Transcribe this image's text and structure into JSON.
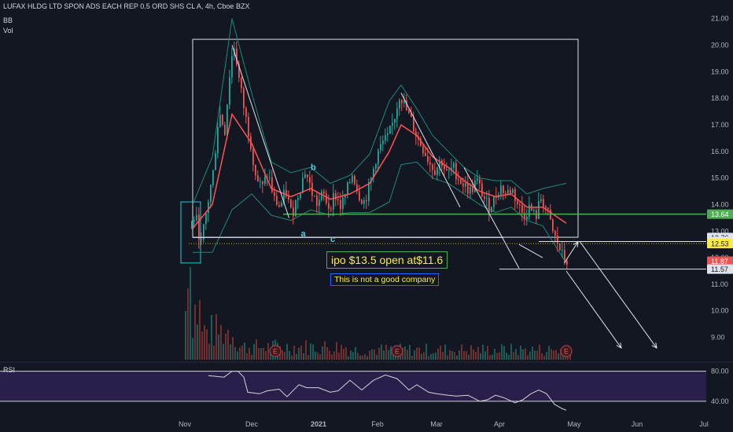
{
  "header": {
    "title": "LUFAX HLDG LTD SPON ADS EACH REP 0.5 ORD SHS CL A, 4h, Cboe BZX",
    "indicator_bb": "BB",
    "indicator_vol": "Vol",
    "rsi_label": "RSI"
  },
  "annotations": {
    "ipo_note": "ipo $13.5 open at$11.6",
    "company_note": "This  is not a good company",
    "wave_a": "a",
    "wave_b": "b",
    "wave_c": "c",
    "earnings_marker": "E"
  },
  "colors": {
    "background": "#131722",
    "up": "#26a69a",
    "down": "#ef5350",
    "bb_band": "#1d8a77",
    "bb_basis": "#ff5252",
    "support_green": "#4caf50",
    "rsi_line": "#d1d4dc",
    "rsi_band": "#2a1f4a",
    "highlight_yellow": "#ffeb3b",
    "cyan_box": "#26c6da"
  },
  "chart_data": {
    "type": "candlestick",
    "title": "LUFAX HLDG LTD SPON ADS EACH REP 0.5 ORD SHS CL A, 4h, Cboe BZX",
    "x_ticks": [
      "Nov",
      "Dec",
      "2021",
      "Feb",
      "Mar",
      "Apr",
      "May",
      "Jun",
      "Jul"
    ],
    "y_ticks": [
      9,
      10,
      11,
      12,
      13,
      14,
      15,
      16,
      17,
      18,
      19,
      20,
      21
    ],
    "y_tick_labels": [
      "9.00",
      "10.00",
      "11.00",
      "12.00",
      "13.00",
      "14.00",
      "15.00",
      "16.00",
      "17.00",
      "18.00",
      "19.00",
      "20.00",
      "21.00"
    ],
    "ylim": [
      8.1,
      21.7
    ],
    "price_path": [
      [
        0,
        13.1
      ],
      [
        1.5,
        13.6
      ],
      [
        3,
        12.5
      ],
      [
        4.5,
        13.9
      ],
      [
        6,
        15.2
      ],
      [
        7.5,
        17.5
      ],
      [
        9,
        16.8
      ],
      [
        10.5,
        19.4
      ],
      [
        11.5,
        20.0
      ],
      [
        12.5,
        18.8
      ],
      [
        14,
        17.5
      ],
      [
        15.5,
        16.4
      ],
      [
        17,
        15.0
      ],
      [
        18.5,
        14.6
      ],
      [
        20,
        15.2
      ],
      [
        21.5,
        14.2
      ],
      [
        23,
        13.9
      ],
      [
        24.5,
        14.5
      ],
      [
        26,
        13.6
      ],
      [
        28,
        14.6
      ],
      [
        29.5,
        15.3
      ],
      [
        31,
        14.5
      ],
      [
        32.5,
        14.0
      ],
      [
        34,
        14.4
      ],
      [
        35.5,
        13.9
      ],
      [
        37,
        14.4
      ],
      [
        38.5,
        13.9
      ],
      [
        40,
        14.5
      ],
      [
        41.5,
        15.2
      ],
      [
        43,
        14.4
      ],
      [
        44.5,
        14.1
      ],
      [
        46,
        14.8
      ],
      [
        47.5,
        15.8
      ],
      [
        49,
        16.3
      ],
      [
        50.5,
        16.5
      ],
      [
        52,
        17.2
      ],
      [
        53.5,
        18.2
      ],
      [
        55,
        17.6
      ],
      [
        56.5,
        17.1
      ],
      [
        58,
        16.5
      ],
      [
        59.5,
        16.1
      ],
      [
        61,
        15.6
      ],
      [
        62.5,
        15.3
      ],
      [
        64,
        15.7
      ],
      [
        65.5,
        15.1
      ],
      [
        67,
        15.4
      ],
      [
        68.5,
        15.0
      ],
      [
        70,
        14.7
      ],
      [
        71.5,
        14.5
      ],
      [
        73,
        14.9
      ],
      [
        74.5,
        14.4
      ],
      [
        76,
        13.9
      ],
      [
        77.5,
        14.2
      ],
      [
        79,
        14.7
      ],
      [
        80.5,
        14.4
      ],
      [
        82,
        14.6
      ],
      [
        83.5,
        14.0
      ],
      [
        85,
        13.6
      ],
      [
        86.5,
        13.9
      ],
      [
        88,
        13.5
      ],
      [
        89.5,
        14.3
      ],
      [
        91,
        13.7
      ],
      [
        92.5,
        12.9
      ],
      [
        94,
        12.4
      ],
      [
        95,
        12.0
      ],
      [
        96,
        11.87
      ]
    ],
    "bollinger": {
      "upper": [
        [
          1,
          14.0
        ],
        [
          6,
          15.8
        ],
        [
          11,
          21.0
        ],
        [
          16,
          18.2
        ],
        [
          21,
          15.6
        ],
        [
          26,
          15.2
        ],
        [
          31,
          15.4
        ],
        [
          36,
          14.8
        ],
        [
          41,
          15.1
        ],
        [
          46,
          15.9
        ],
        [
          51,
          17.9
        ],
        [
          54,
          18.5
        ],
        [
          58,
          17.6
        ],
        [
          62,
          16.6
        ],
        [
          66,
          16.0
        ],
        [
          70,
          15.4
        ],
        [
          74,
          15.0
        ],
        [
          78,
          14.9
        ],
        [
          82,
          14.9
        ],
        [
          86,
          14.4
        ],
        [
          90,
          14.6
        ],
        [
          96,
          14.8
        ]
      ],
      "basis": [
        [
          1,
          13.1
        ],
        [
          6,
          14.0
        ],
        [
          11,
          17.4
        ],
        [
          16,
          16.3
        ],
        [
          21,
          14.6
        ],
        [
          26,
          14.3
        ],
        [
          31,
          14.6
        ],
        [
          36,
          14.2
        ],
        [
          41,
          14.4
        ],
        [
          46,
          14.8
        ],
        [
          51,
          16.0
        ],
        [
          54,
          17.0
        ],
        [
          58,
          16.6
        ],
        [
          62,
          15.8
        ],
        [
          66,
          15.4
        ],
        [
          70,
          14.9
        ],
        [
          74,
          14.5
        ],
        [
          78,
          14.3
        ],
        [
          82,
          14.4
        ],
        [
          86,
          13.9
        ],
        [
          90,
          13.9
        ],
        [
          96,
          13.3
        ]
      ],
      "lower": [
        [
          1,
          12.2
        ],
        [
          6,
          12.2
        ],
        [
          11,
          13.8
        ],
        [
          16,
          14.4
        ],
        [
          21,
          13.6
        ],
        [
          26,
          13.4
        ],
        [
          31,
          13.8
        ],
        [
          36,
          13.6
        ],
        [
          41,
          13.7
        ],
        [
          46,
          13.7
        ],
        [
          51,
          14.1
        ],
        [
          54,
          15.5
        ],
        [
          58,
          15.6
        ],
        [
          62,
          15.0
        ],
        [
          66,
          14.8
        ],
        [
          70,
          14.4
        ],
        [
          74,
          14.0
        ],
        [
          78,
          13.7
        ],
        [
          82,
          13.9
        ],
        [
          86,
          13.4
        ],
        [
          90,
          13.2
        ],
        [
          96,
          11.8
        ]
      ]
    },
    "price_labels": [
      {
        "value": 13.64,
        "text": "13.64",
        "style": "green"
      },
      {
        "value": 12.76,
        "text": "12.76",
        "style": "white"
      },
      {
        "value": 12.61,
        "text": "12.61",
        "style": "white"
      },
      {
        "value": 12.53,
        "text": "12.53",
        "style": "yellow"
      },
      {
        "value": 11.87,
        "text": "11.87",
        "style": "red"
      },
      {
        "value": 11.57,
        "text": "11.57",
        "style": "white"
      }
    ],
    "horizontal_lines": [
      {
        "value": 13.64,
        "x0": 24,
        "x1": 153,
        "color": "green"
      },
      {
        "value": 12.76,
        "x0": 1,
        "x1": 80,
        "color": "white"
      },
      {
        "value": 12.61,
        "x0": 89,
        "x1": 153,
        "color": "white"
      },
      {
        "value": 12.53,
        "x0": 0,
        "x1": 153,
        "color": "yellow-dotted"
      },
      {
        "value": 11.57,
        "x0": 79,
        "x1": 153,
        "color": "white"
      }
    ],
    "rectangles": [
      {
        "x0": 1,
        "x1": 99,
        "y0": 12.77,
        "y1": 20.22,
        "color": "white"
      },
      {
        "x0": -2,
        "x1": 3,
        "y0": 11.8,
        "y1": 14.1,
        "color": "cyan"
      }
    ],
    "trend_lines": [
      {
        "points": [
          [
            11,
            20.0
          ],
          [
            25.5,
            13.5
          ]
        ]
      },
      {
        "points": [
          [
            54,
            18.2
          ],
          [
            69,
            13.9
          ]
        ]
      },
      {
        "points": [
          [
            70,
            15.4
          ],
          [
            84,
            11.6
          ]
        ]
      },
      {
        "points": [
          [
            84,
            12.5
          ],
          [
            90,
            12.0
          ]
        ]
      }
    ],
    "projection_arrows": [
      {
        "points": [
          [
            95.5,
            11.8
          ],
          [
            99,
            12.6
          ]
        ]
      },
      {
        "points": [
          [
            96,
            11.5
          ],
          [
            110,
            8.6
          ]
        ]
      },
      {
        "points": [
          [
            99.5,
            12.6
          ],
          [
            119,
            8.6
          ]
        ]
      }
    ],
    "earnings_x": [
      22,
      53,
      96
    ],
    "volume": {
      "pattern": "spiky, largest at Nov IPO period, tapering through Jan to May"
    },
    "rsi": {
      "lines": [
        80,
        40
      ],
      "tick_labels": [
        "80.00",
        "40.00"
      ],
      "path": [
        [
          5,
          74
        ],
        [
          9,
          72
        ],
        [
          11,
          80
        ],
        [
          12.5,
          80
        ],
        [
          14,
          72
        ],
        [
          15,
          52
        ],
        [
          18,
          50
        ],
        [
          20,
          54
        ],
        [
          23,
          56
        ],
        [
          25,
          46
        ],
        [
          28,
          62
        ],
        [
          30,
          58
        ],
        [
          33,
          58
        ],
        [
          36,
          52
        ],
        [
          38,
          54
        ],
        [
          41,
          68
        ],
        [
          44,
          55
        ],
        [
          47,
          68
        ],
        [
          50,
          75
        ],
        [
          53,
          70
        ],
        [
          56,
          55
        ],
        [
          58,
          62
        ],
        [
          61,
          52
        ],
        [
          63,
          50
        ],
        [
          66,
          48
        ],
        [
          68,
          47
        ],
        [
          71,
          48
        ],
        [
          74,
          40
        ],
        [
          76,
          42
        ],
        [
          78,
          48
        ],
        [
          80,
          45
        ],
        [
          83,
          38
        ],
        [
          85,
          42
        ],
        [
          87,
          50
        ],
        [
          89,
          55
        ],
        [
          91,
          50
        ],
        [
          93,
          36
        ],
        [
          95,
          30
        ],
        [
          96,
          28
        ]
      ]
    }
  }
}
